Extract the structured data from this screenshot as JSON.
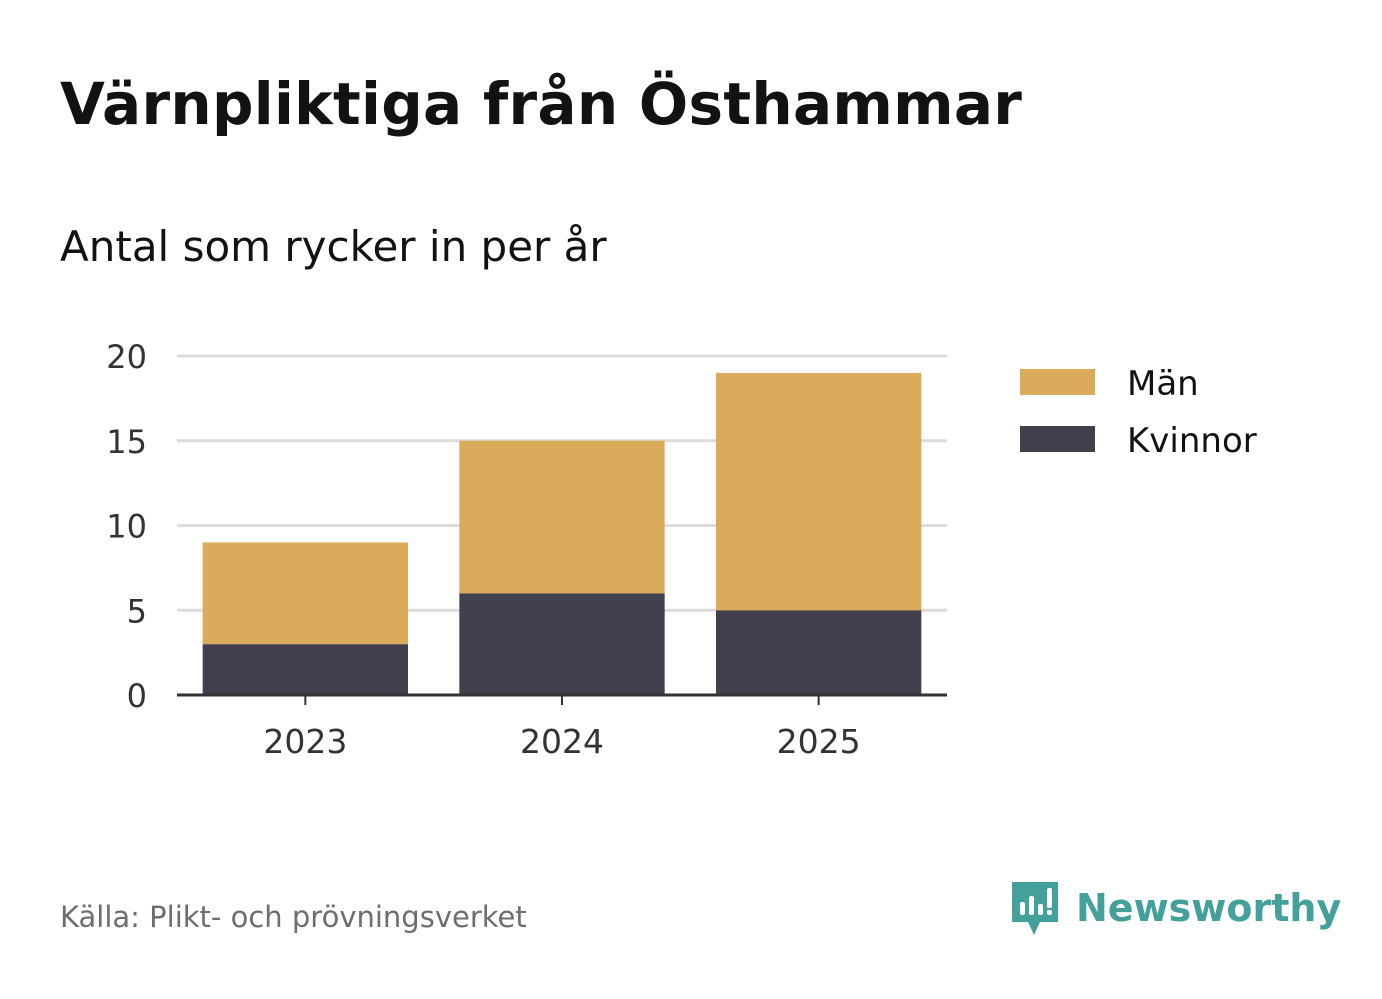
{
  "header": {
    "title": "Värnpliktiga från Östhammar",
    "subtitle": "Antal som rycker in per år"
  },
  "footer": {
    "source": "Källa: Plikt- och prövningsverket",
    "brand": "Newsworthy",
    "brand_icon": "newsworthy-logo-icon"
  },
  "colors": {
    "men": "#d9ab5a",
    "women": "#42404d",
    "grid": "#dcdcdc",
    "axis": "#333333",
    "brand": "#43a09a"
  },
  "chart_data": {
    "type": "bar",
    "stacked": true,
    "categories": [
      "2023",
      "2024",
      "2025"
    ],
    "series": [
      {
        "name": "Kvinnor",
        "values": [
          3,
          6,
          5
        ]
      },
      {
        "name": "Män",
        "values": [
          6,
          9,
          14
        ]
      }
    ],
    "legend_order": [
      "Män",
      "Kvinnor"
    ],
    "ylim": [
      0,
      20
    ],
    "yticks": [
      0,
      5,
      10,
      15,
      20
    ],
    "xlabel": "",
    "ylabel": "",
    "grid": true,
    "legend_position": "right"
  }
}
